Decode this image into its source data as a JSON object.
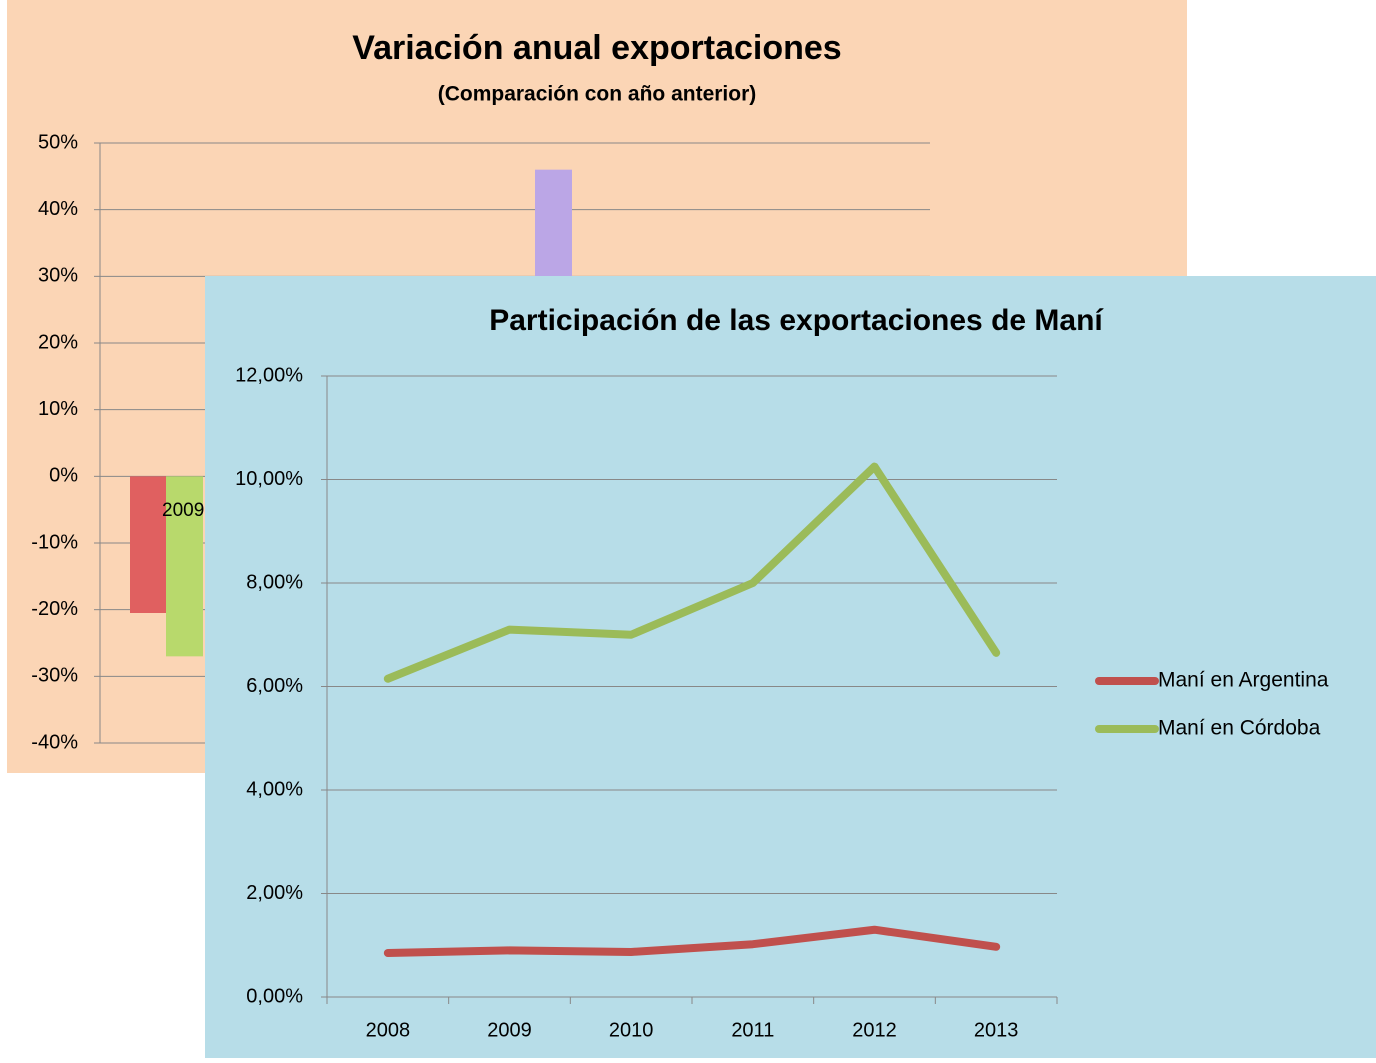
{
  "chart_data": [
    {
      "type": "bar",
      "title": "Variación anual exportaciones",
      "subtitle": "(Comparación con año anterior)",
      "categories": [
        "2009"
      ],
      "series": [
        {
          "color": "#e06060",
          "values": [
            -20.5
          ]
        },
        {
          "color": "#b8d96c",
          "values": [
            -27
          ]
        },
        {
          "color": "#bba6e6",
          "values": [
            46
          ]
        }
      ],
      "ylim": [
        -40,
        50
      ],
      "yticks": [
        {
          "value": -40,
          "label": "-40%"
        },
        {
          "value": -30,
          "label": "-30%"
        },
        {
          "value": -20,
          "label": "-20%"
        },
        {
          "value": -10,
          "label": "-10%"
        },
        {
          "value": 0,
          "label": "0%"
        },
        {
          "value": 10,
          "label": "10%"
        },
        {
          "value": 20,
          "label": "20%"
        },
        {
          "value": 30,
          "label": "30%"
        },
        {
          "value": 40,
          "label": "40%"
        },
        {
          "value": 50,
          "label": "50%"
        }
      ],
      "grid": true
    },
    {
      "type": "line",
      "title": "Participación de las exportaciones de Maní",
      "categories": [
        "2008",
        "2009",
        "2010",
        "2011",
        "2012",
        "2013"
      ],
      "series": [
        {
          "name": "Maní en Argentina",
          "color": "#c0504d",
          "values": [
            0.85,
            0.9,
            0.87,
            1.02,
            1.3,
            0.97
          ]
        },
        {
          "name": "Maní en Córdoba",
          "color": "#9bbb59",
          "values": [
            6.15,
            7.1,
            7.0,
            8.0,
            10.25,
            6.65
          ]
        }
      ],
      "ylim": [
        0,
        12
      ],
      "yticks": [
        {
          "value": 0,
          "label": "0,00%"
        },
        {
          "value": 2,
          "label": "2,00%"
        },
        {
          "value": 4,
          "label": "4,00%"
        },
        {
          "value": 6,
          "label": "6,00%"
        },
        {
          "value": 8,
          "label": "8,00%"
        },
        {
          "value": 10,
          "label": "10,00%"
        },
        {
          "value": 12,
          "label": "12,00%"
        }
      ],
      "grid": true,
      "legend": "right"
    }
  ]
}
